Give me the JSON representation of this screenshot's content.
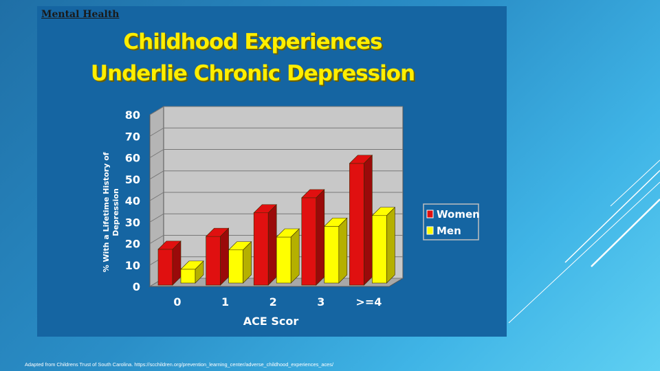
{
  "slide": {
    "brand": "Mental Health",
    "title_line1": "Childhood Experiences",
    "title_line2": "Underlie Chronic Depression",
    "footnote": "Adapted from Childrens Trust of South Carolina. https://scchildren.org/prevention_learning_center/adverse_childhood_experiences_aces/"
  },
  "chart_data": {
    "type": "bar",
    "categories": [
      "0",
      "1",
      "2",
      "3",
      ">=4"
    ],
    "series": [
      {
        "name": "Women",
        "values": [
          17,
          23,
          34,
          41,
          57
        ],
        "color": "#e01010",
        "side_color": "#9a0a0a"
      },
      {
        "name": "Men",
        "values": [
          9,
          18,
          24,
          29,
          34
        ],
        "color": "#ffff00",
        "side_color": "#b5b000"
      }
    ],
    "xlabel": "ACE Scor",
    "ylabel_line1": "% With a Lifetime History of",
    "ylabel_line2": "Depression",
    "ylim": [
      0,
      80
    ],
    "yticks": [
      0,
      10,
      20,
      30,
      40,
      50,
      60,
      70,
      80
    ],
    "grid": true,
    "legend_position": "right",
    "colors": {
      "plot_bg": "#c8c8c8",
      "slide_bg": "#1565a2",
      "title": "#ffee00"
    }
  }
}
